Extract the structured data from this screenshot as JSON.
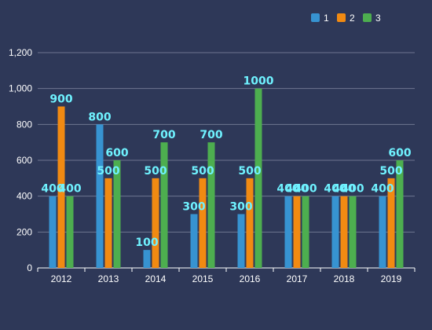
{
  "chart_data": {
    "type": "bar",
    "categories": [
      "2012",
      "2013",
      "2014",
      "2015",
      "2016",
      "2017",
      "2018",
      "2019"
    ],
    "series": [
      {
        "name": "1",
        "color": "#3793d1",
        "values": [
          400,
          800,
          100,
          300,
          300,
          400,
          400,
          400
        ]
      },
      {
        "name": "2",
        "color": "#f18a12",
        "values": [
          900,
          500,
          500,
          500,
          500,
          400,
          400,
          500
        ]
      },
      {
        "name": "3",
        "color": "#4dae4f",
        "values": [
          400,
          600,
          700,
          700,
          1000,
          400,
          400,
          600
        ]
      }
    ],
    "y_ticks": [
      "0",
      "200",
      "400",
      "600",
      "800",
      "1,000",
      "1,200"
    ],
    "ylim": [
      0,
      1200
    ],
    "grid": true,
    "legend_position": "top-right",
    "data_labels": true,
    "colors": {
      "background": "#2e3858",
      "label": "#6ff2ff",
      "text": "#ffffff"
    }
  }
}
